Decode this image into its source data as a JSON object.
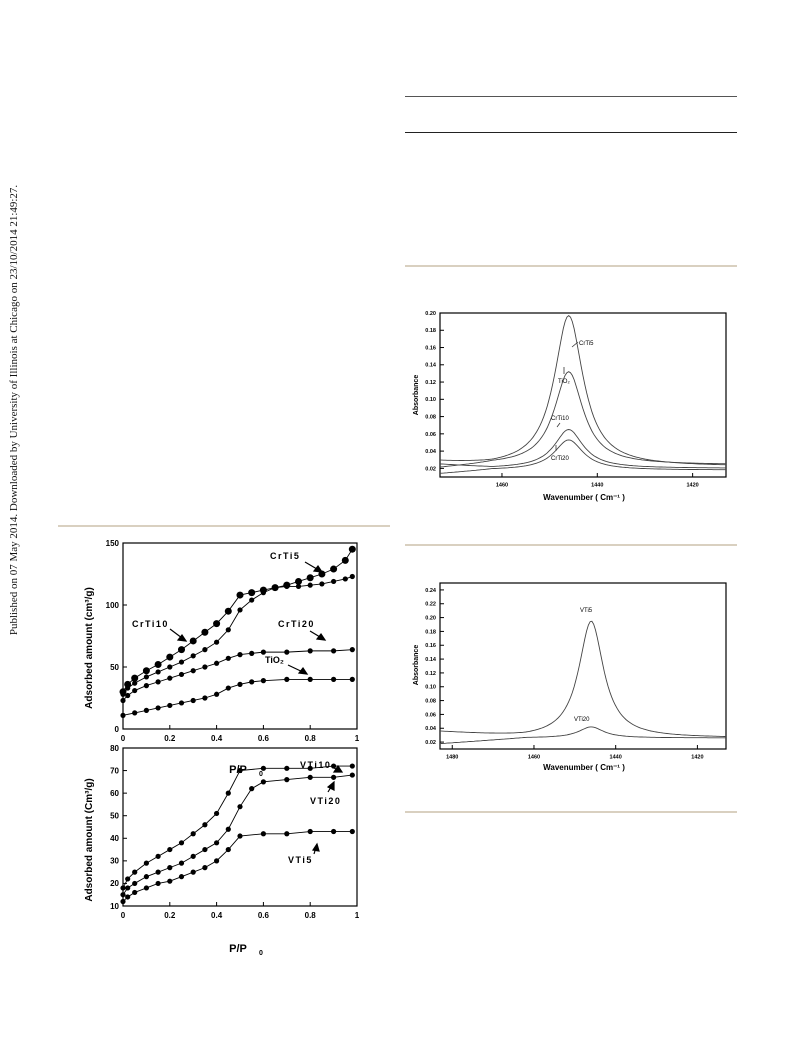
{
  "sidebar_text": "Published on 07 May 2014. Downloaded by University of Illinois at Chicago on 23/10/2014 21:49:27.",
  "chart_data": [
    {
      "type": "line",
      "id": "isotherm-crti",
      "xlabel": "P/P",
      "xlabel_sub": "0",
      "ylabel": "Adsorbed amount (cm³/g)",
      "xlim": [
        0,
        1
      ],
      "ylim": [
        0,
        150
      ],
      "xticks": [
        "0",
        "0.2",
        "0.4",
        "0.6",
        "0.8",
        "1"
      ],
      "yticks": [
        "0",
        "50",
        "100",
        "150"
      ],
      "annotations": [
        "CrTi5",
        "CrTi10",
        "CrTi20",
        "TiO₂"
      ],
      "series": [
        {
          "name": "CrTi5",
          "x": [
            0,
            0.02,
            0.05,
            0.1,
            0.15,
            0.2,
            0.25,
            0.3,
            0.35,
            0.4,
            0.45,
            0.5,
            0.55,
            0.6,
            0.65,
            0.7,
            0.75,
            0.8,
            0.85,
            0.9,
            0.95,
            0.98
          ],
          "y": [
            30,
            36,
            41,
            47,
            52,
            58,
            64,
            71,
            78,
            85,
            95,
            108,
            110,
            112,
            114,
            116,
            119,
            122,
            125,
            129,
            136,
            145
          ]
        },
        {
          "name": "CrTi10",
          "x": [
            0,
            0.02,
            0.05,
            0.1,
            0.15,
            0.2,
            0.25,
            0.3,
            0.35,
            0.4,
            0.45,
            0.5,
            0.55,
            0.6,
            0.65,
            0.7,
            0.75,
            0.8,
            0.85,
            0.9,
            0.95,
            0.98
          ],
          "y": [
            28,
            33,
            37,
            42,
            46,
            50,
            54,
            59,
            64,
            70,
            80,
            96,
            104,
            110,
            114,
            115,
            115,
            116,
            117,
            119,
            121,
            123
          ]
        },
        {
          "name": "CrTi20",
          "x": [
            0,
            0.02,
            0.05,
            0.1,
            0.15,
            0.2,
            0.25,
            0.3,
            0.35,
            0.4,
            0.45,
            0.5,
            0.55,
            0.6,
            0.7,
            0.8,
            0.9,
            0.98
          ],
          "y": [
            23,
            27,
            31,
            35,
            38,
            41,
            44,
            47,
            50,
            53,
            57,
            60,
            61,
            62,
            62,
            63,
            63,
            64
          ]
        },
        {
          "name": "TiO₂",
          "x": [
            0,
            0.05,
            0.1,
            0.15,
            0.2,
            0.25,
            0.3,
            0.35,
            0.4,
            0.45,
            0.5,
            0.55,
            0.6,
            0.7,
            0.8,
            0.9,
            0.98
          ],
          "y": [
            11,
            13,
            15,
            17,
            19,
            21,
            23,
            25,
            28,
            33,
            36,
            38,
            39,
            40,
            40,
            40,
            40
          ]
        }
      ]
    },
    {
      "type": "line",
      "id": "isotherm-vti",
      "xlabel": "P/P",
      "xlabel_sub": "0",
      "ylabel": "Adsorbed amount (Cm³/g)",
      "xlim": [
        0,
        1
      ],
      "ylim": [
        10,
        80
      ],
      "xticks": [
        "0",
        "0.2",
        "0.4",
        "0.6",
        "0.8",
        "1"
      ],
      "yticks": [
        "10",
        "20",
        "30",
        "40",
        "50",
        "60",
        "70",
        "80"
      ],
      "annotations": [
        "VTi10",
        "VTi20",
        "VTi5"
      ],
      "series": [
        {
          "name": "VTi10",
          "x": [
            0,
            0.02,
            0.05,
            0.1,
            0.15,
            0.2,
            0.25,
            0.3,
            0.35,
            0.4,
            0.45,
            0.5,
            0.6,
            0.7,
            0.8,
            0.9,
            0.98
          ],
          "y": [
            18,
            22,
            25,
            29,
            32,
            35,
            38,
            42,
            46,
            51,
            60,
            70,
            71,
            71,
            71,
            72,
            72
          ]
        },
        {
          "name": "VTi20",
          "x": [
            0,
            0.02,
            0.05,
            0.1,
            0.15,
            0.2,
            0.25,
            0.3,
            0.35,
            0.4,
            0.45,
            0.5,
            0.55,
            0.6,
            0.7,
            0.8,
            0.9,
            0.98
          ],
          "y": [
            15,
            18,
            20,
            23,
            25,
            27,
            29,
            32,
            35,
            38,
            44,
            54,
            62,
            65,
            66,
            67,
            67,
            68
          ]
        },
        {
          "name": "VTi5",
          "x": [
            0,
            0.02,
            0.05,
            0.1,
            0.15,
            0.2,
            0.25,
            0.3,
            0.35,
            0.4,
            0.45,
            0.5,
            0.6,
            0.7,
            0.8,
            0.9,
            0.98
          ],
          "y": [
            12,
            14,
            16,
            18,
            20,
            21,
            23,
            25,
            27,
            30,
            35,
            41,
            42,
            42,
            43,
            43,
            43
          ]
        }
      ]
    },
    {
      "type": "line",
      "id": "ir-crti",
      "xlabel": "Wavenumber ( Cm⁻¹ )",
      "ylabel": "Absorbance",
      "xlim": [
        1473,
        1413
      ],
      "ylim": [
        0.01,
        0.2
      ],
      "xticks": [
        "1460",
        "1440",
        "1420"
      ],
      "yticks": [
        "0.02",
        "0.04",
        "0.06",
        "0.08",
        "0.10",
        "0.12",
        "0.14",
        "0.16",
        "0.18",
        "0.20"
      ],
      "annotations": [
        "CrTi5",
        "TiO₂",
        "CrTi10",
        "CrTi20"
      ],
      "series": [
        {
          "name": "CrTi5",
          "peak_center": 1446,
          "peak_height": 0.197,
          "baseline": 0.022
        },
        {
          "name": "TiO₂",
          "peak_center": 1446,
          "peak_height": 0.132,
          "baseline": 0.024
        },
        {
          "name": "CrTi10",
          "peak_center": 1446,
          "peak_height": 0.065,
          "baseline": 0.02
        },
        {
          "name": "CrTi20",
          "peak_center": 1446,
          "peak_height": 0.053,
          "baseline": 0.018
        }
      ]
    },
    {
      "type": "line",
      "id": "ir-vti",
      "xlabel": "Wavenumber ( Cm⁻¹ )",
      "ylabel": "Absorbance",
      "xlim": [
        1483,
        1413
      ],
      "ylim": [
        0.01,
        0.25
      ],
      "xticks": [
        "1480",
        "1460",
        "1440",
        "1420"
      ],
      "yticks": [
        "0.02",
        "0.04",
        "0.06",
        "0.08",
        "0.10",
        "0.12",
        "0.14",
        "0.16",
        "0.18",
        "0.20",
        "0.22",
        "0.24"
      ],
      "annotations": [
        "VTi5",
        "VTi20"
      ],
      "series": [
        {
          "name": "VTi5",
          "peak_center": 1446,
          "peak_height": 0.195,
          "baseline": 0.026
        },
        {
          "name": "VTi20",
          "peak_center": 1446,
          "peak_height": 0.042,
          "baseline": 0.026
        }
      ]
    }
  ]
}
